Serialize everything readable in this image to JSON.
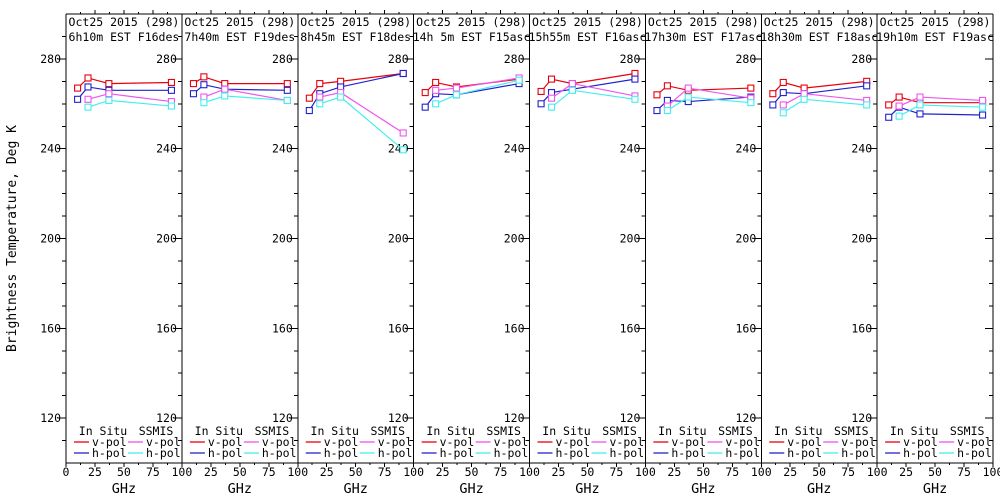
{
  "chart_data": {
    "type": "line",
    "ylabel": "Brightness Temperature, Deg K",
    "xlabel": "GHz",
    "xlim": [
      0,
      100
    ],
    "ylim": [
      100,
      300
    ],
    "x_ticks": [
      0,
      25,
      50,
      75,
      100
    ],
    "x_minor_ticks": [
      12.5,
      37.5,
      62.5,
      87.5
    ],
    "y_ticks": [
      120,
      160,
      200,
      240,
      280
    ],
    "y_minor_step": 10,
    "legend": {
      "group1": "In Situ",
      "group2": "SSMIS",
      "vpol_label": "v-pol",
      "hpol_label": "h-pol"
    },
    "colors": {
      "insitu_v": "#e8000b",
      "insitu_h": "#2222cc",
      "ssmis_v": "#ee55ee",
      "ssmis_h": "#44eeee",
      "axis": "#000000"
    },
    "insitu_x_ghz": [
      10,
      19,
      37,
      91
    ],
    "ssmis_x_ghz": [
      19,
      37,
      91
    ],
    "panels": [
      {
        "date_line": "Oct25 2015 (298)",
        "info_line": "6h10m EST F16des",
        "insitu_v": [
          267,
          271.5,
          269,
          269.5
        ],
        "insitu_h": [
          262,
          267.5,
          266,
          266
        ],
        "ssmis_v": [
          262,
          264.5,
          261
        ],
        "ssmis_h": [
          258.5,
          261.5,
          259
        ]
      },
      {
        "date_line": "Oct25 2015 (298)",
        "info_line": "7h40m EST F19des",
        "insitu_v": [
          269,
          272,
          269,
          269
        ],
        "insitu_h": [
          264.5,
          268.5,
          266.5,
          266
        ],
        "ssmis_v": [
          263,
          266.5,
          261.5
        ],
        "ssmis_h": [
          260.5,
          263.5,
          261.5
        ]
      },
      {
        "date_line": "Oct25 2015 (298)",
        "info_line": "8h45m EST F18des",
        "insitu_v": [
          262.5,
          269,
          270,
          273.5
        ],
        "insitu_h": [
          257,
          264.5,
          267.5,
          273.5
        ],
        "ssmis_v": [
          263,
          265,
          247
        ],
        "ssmis_h": [
          260,
          263,
          239.5
        ]
      },
      {
        "date_line": "Oct25 2015 (298)",
        "info_line": "14h 5m EST F15asc",
        "insitu_v": [
          265,
          269.5,
          267.5,
          271
        ],
        "insitu_h": [
          258.5,
          264.5,
          264,
          269
        ],
        "ssmis_v": [
          266,
          267,
          271.5
        ],
        "ssmis_h": [
          260,
          264,
          270.5
        ]
      },
      {
        "date_line": "Oct25 2015 (298)",
        "info_line": "15h55m EST F16asc",
        "insitu_v": [
          265.5,
          271,
          269,
          273.5
        ],
        "insitu_h": [
          260,
          265,
          266.5,
          271
        ],
        "ssmis_v": [
          262.5,
          269,
          263.5
        ],
        "ssmis_h": [
          258.5,
          266,
          262
        ]
      },
      {
        "date_line": "Oct25 2015 (298)",
        "info_line": "17h30m EST F17asc",
        "insitu_v": [
          264,
          268,
          266,
          267
        ],
        "insitu_h": [
          257,
          261.5,
          261,
          263
        ],
        "ssmis_v": [
          259,
          267,
          262.5
        ],
        "ssmis_h": [
          257,
          263,
          260.5
        ]
      },
      {
        "date_line": "Oct25 2015 (298)",
        "info_line": "18h30m EST F18asc",
        "insitu_v": [
          264.5,
          269.5,
          267,
          270
        ],
        "insitu_h": [
          259.5,
          265,
          264.5,
          268
        ],
        "ssmis_v": [
          259.5,
          264.5,
          261.5
        ],
        "ssmis_h": [
          256,
          262,
          259.5
        ]
      },
      {
        "date_line": "Oct25 2015 (298)",
        "info_line": "19h10m EST F19asc",
        "insitu_v": [
          259.5,
          263,
          260.5,
          260.5
        ],
        "insitu_h": [
          254,
          258.5,
          255.5,
          255
        ],
        "ssmis_v": [
          259,
          263,
          261.5
        ],
        "ssmis_h": [
          254.5,
          259.5,
          258.5
        ]
      }
    ]
  }
}
